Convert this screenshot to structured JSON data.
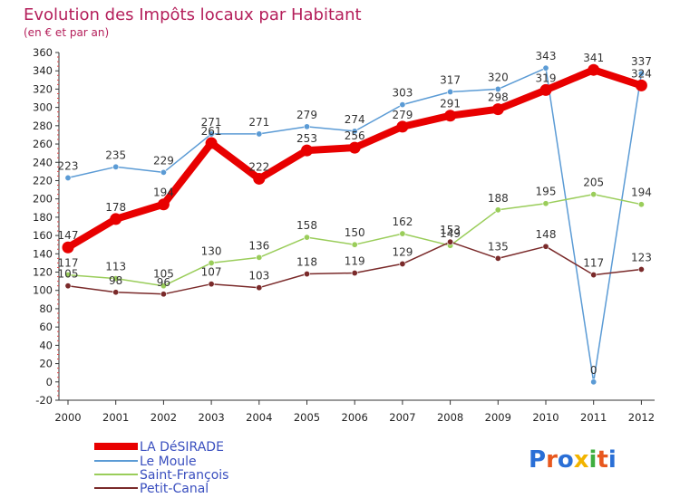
{
  "chart_data": {
    "type": "line",
    "title": "Evolution des Impôts locaux par Habitant",
    "subtitle": "(en € et par an)",
    "brand": "Proxiti",
    "categories": [
      "2000",
      "2001",
      "2002",
      "2003",
      "2004",
      "2005",
      "2006",
      "2007",
      "2008",
      "2009",
      "2010",
      "2011",
      "2012"
    ],
    "ylim": [
      -20,
      360
    ],
    "yticks": [
      -20,
      0,
      20,
      40,
      60,
      80,
      100,
      120,
      140,
      160,
      180,
      200,
      220,
      240,
      260,
      280,
      300,
      320,
      340,
      360
    ],
    "grid": false,
    "legend_position": "bottom-left",
    "series": [
      {
        "name": "Le Moule",
        "color": "#5b9bd5",
        "values": [
          223,
          235,
          229,
          271,
          271,
          279,
          274,
          303,
          317,
          320,
          343,
          0,
          337
        ]
      },
      {
        "name": "Saint-François",
        "color": "#9acd5a",
        "values": [
          117,
          113,
          105,
          130,
          136,
          158,
          150,
          162,
          149,
          188,
          195,
          205,
          194
        ]
      },
      {
        "name": "Petit-Canal",
        "color": "#7a2a2a",
        "values": [
          105,
          98,
          96,
          107,
          103,
          118,
          119,
          129,
          153,
          135,
          148,
          117,
          123
        ]
      },
      {
        "name": "LA DéSIRADE",
        "color": "#e80000",
        "values": [
          147,
          178,
          194,
          261,
          222,
          253,
          256,
          279,
          291,
          298,
          319,
          341,
          324
        ]
      }
    ],
    "legend": [
      "LA DéSIRADE",
      "Le Moule",
      "Saint-François",
      "Petit-Canal"
    ]
  }
}
